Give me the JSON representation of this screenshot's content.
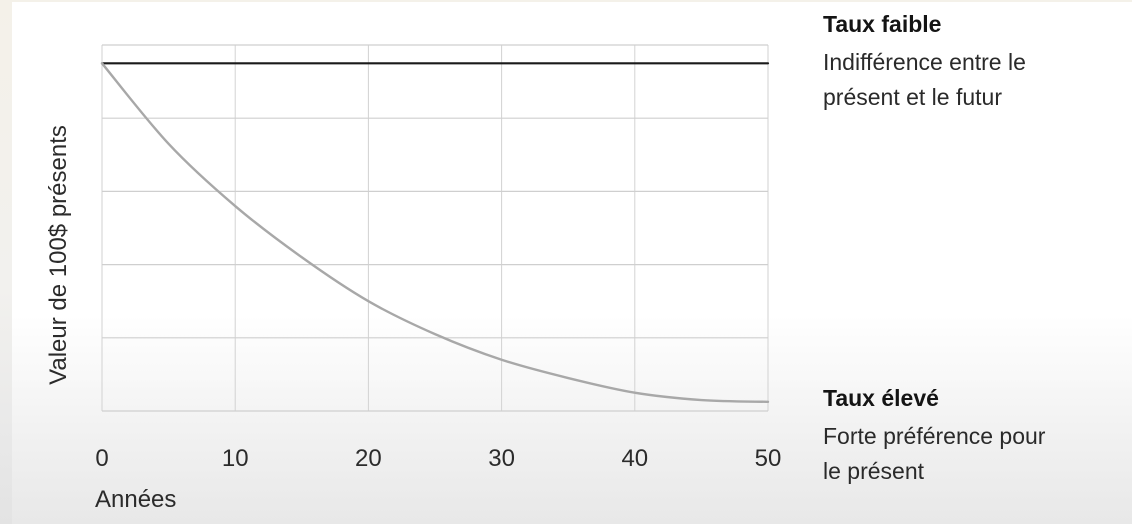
{
  "chart_data": {
    "type": "line",
    "ylabel": "Valeur de 100$ présents",
    "xlabel": "Années",
    "x_ticks": [
      "0",
      "10",
      "20",
      "30",
      "40",
      "50"
    ],
    "xlim": [
      0,
      50
    ],
    "ylim": [
      0,
      100
    ],
    "y_grid_values": [
      0,
      20,
      40,
      60,
      80,
      100
    ],
    "grid": true,
    "series": [
      {
        "name": "Taux faible",
        "color": "#1a1a1a",
        "x": [
          0,
          10,
          20,
          30,
          40,
          50
        ],
        "values": [
          95,
          95,
          95,
          95,
          95,
          95
        ]
      },
      {
        "name": "Taux élevé",
        "color": "#a8a8a8",
        "x": [
          0,
          5,
          10,
          15,
          20,
          25,
          30,
          35,
          40,
          45,
          50
        ],
        "values": [
          95,
          73,
          56,
          42,
          30,
          21,
          14,
          9,
          5,
          3,
          2.5
        ]
      }
    ]
  },
  "legend": {
    "low": {
      "title": "Taux faible",
      "line1": "Indifférence entre le",
      "line2": "présent et le futur"
    },
    "high": {
      "title": "Taux élevé",
      "line1": "Forte préférence pour",
      "line2": "le présent"
    }
  }
}
